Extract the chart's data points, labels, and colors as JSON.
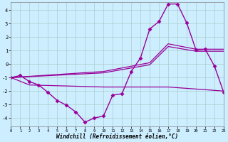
{
  "xlabel": "Windchill (Refroidissement éolien,°C)",
  "background_color": "#cceeff",
  "grid_color": "#aacccc",
  "line_color": "#990099",
  "xlim": [
    0,
    23
  ],
  "ylim": [
    -4.6,
    4.6
  ],
  "yticks": [
    -4,
    -3,
    -2,
    -1,
    0,
    1,
    2,
    3,
    4
  ],
  "xticks": [
    0,
    1,
    2,
    3,
    4,
    5,
    6,
    7,
    8,
    9,
    10,
    11,
    12,
    13,
    14,
    15,
    16,
    17,
    18,
    19,
    20,
    21,
    22,
    23
  ],
  "lines": [
    {
      "x": [
        0,
        1,
        2,
        3,
        4,
        5,
        6,
        7,
        8,
        9,
        10,
        11,
        12,
        13,
        14,
        15,
        16,
        17,
        18,
        19,
        20,
        21,
        22,
        23
      ],
      "y": [
        -1.0,
        -0.85,
        -1.3,
        -1.55,
        -2.1,
        -2.7,
        -3.05,
        -3.55,
        -4.3,
        -4.0,
        -3.85,
        -2.3,
        -2.2,
        -0.55,
        0.45,
        2.6,
        3.15,
        4.45,
        4.45,
        3.05,
        1.05,
        1.1,
        -0.15,
        -2.1
      ],
      "marker": "D",
      "markersize": 2.5,
      "linewidth": 1.0
    },
    {
      "x": [
        0,
        10,
        15,
        17,
        20,
        23
      ],
      "y": [
        -1.0,
        -0.55,
        0.1,
        1.5,
        1.1,
        1.1
      ],
      "marker": null,
      "linewidth": 0.9
    },
    {
      "x": [
        0,
        10,
        15,
        17,
        20,
        23
      ],
      "y": [
        -1.0,
        -0.65,
        -0.05,
        1.3,
        0.95,
        0.95
      ],
      "marker": null,
      "linewidth": 0.9
    },
    {
      "x": [
        0,
        2,
        10,
        17,
        23
      ],
      "y": [
        -1.0,
        -1.55,
        -1.7,
        -1.7,
        -2.0
      ],
      "marker": null,
      "linewidth": 0.9
    }
  ]
}
